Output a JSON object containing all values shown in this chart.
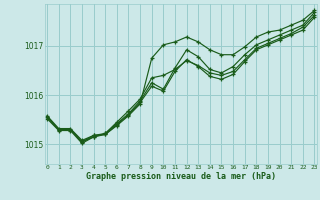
{
  "title": "Graphe pression niveau de la mer (hPa)",
  "bg_color": "#cce8e8",
  "grid_color": "#99cccc",
  "line_color": "#1a5c1a",
  "x_min": 0,
  "x_max": 23,
  "y_min": 1014.6,
  "y_max": 1017.85,
  "yticks": [
    1015,
    1016,
    1017
  ],
  "xticks": [
    0,
    1,
    2,
    3,
    4,
    5,
    6,
    7,
    8,
    9,
    10,
    11,
    12,
    13,
    14,
    15,
    16,
    17,
    18,
    19,
    20,
    21,
    22,
    23
  ],
  "series": [
    [
      1015.58,
      1015.32,
      1015.32,
      1015.08,
      1015.18,
      1015.2,
      1015.38,
      1015.58,
      1015.82,
      1016.75,
      1017.02,
      1017.08,
      1017.18,
      1017.08,
      1016.92,
      1016.82,
      1016.82,
      1016.98,
      1017.18,
      1017.28,
      1017.32,
      1017.42,
      1017.52,
      1017.72
    ],
    [
      1015.55,
      1015.3,
      1015.3,
      1015.05,
      1015.15,
      1015.22,
      1015.42,
      1015.62,
      1015.88,
      1016.25,
      1016.12,
      1016.55,
      1016.92,
      1016.78,
      1016.52,
      1016.45,
      1016.58,
      1016.82,
      1017.02,
      1017.12,
      1017.22,
      1017.32,
      1017.42,
      1017.68
    ],
    [
      1015.55,
      1015.3,
      1015.3,
      1015.05,
      1015.18,
      1015.22,
      1015.45,
      1015.68,
      1015.92,
      1016.35,
      1016.4,
      1016.52,
      1016.7,
      1016.6,
      1016.45,
      1016.4,
      1016.48,
      1016.72,
      1016.95,
      1017.05,
      1017.15,
      1017.25,
      1017.38,
      1017.62
    ],
    [
      1015.52,
      1015.28,
      1015.28,
      1015.02,
      1015.15,
      1015.2,
      1015.4,
      1015.6,
      1015.85,
      1016.18,
      1016.08,
      1016.48,
      1016.72,
      1016.58,
      1016.38,
      1016.32,
      1016.42,
      1016.68,
      1016.92,
      1017.02,
      1017.12,
      1017.22,
      1017.32,
      1017.58
    ]
  ]
}
